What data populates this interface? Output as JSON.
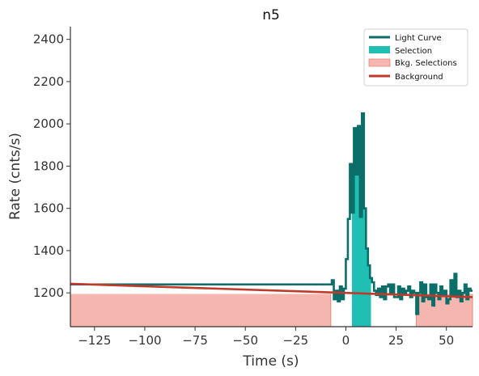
{
  "chart_data": {
    "type": "line",
    "title": "n5",
    "xlabel": "Time (s)",
    "ylabel": "Rate (cnts/s)",
    "xlim": [
      -137,
      63
    ],
    "ylim": [
      1040,
      2460
    ],
    "xticks": [
      -125,
      -100,
      -75,
      -50,
      -25,
      0,
      25,
      50
    ],
    "xtick_labels": [
      "−125",
      "−100",
      "−75",
      "−50",
      "−25",
      "0",
      "25",
      "50"
    ],
    "yticks": [
      1200,
      1400,
      1600,
      1800,
      2000,
      2200,
      2400
    ],
    "ytick_labels": [
      "1200",
      "1400",
      "1600",
      "1800",
      "2000",
      "2200",
      "2400"
    ],
    "grid": false,
    "legend_position": "top-right",
    "colors": {
      "light_curve": "#0b6e69",
      "selection": "#1fbfb3",
      "bkg_selection": "#f4b6ae",
      "bkg_selection_edge": "#e8877b",
      "background": "#c0392b",
      "axis": "#333333"
    },
    "legend": [
      {
        "label": "Light Curve",
        "kind": "line",
        "color": "#0b6e69"
      },
      {
        "label": "Selection",
        "kind": "patch",
        "color": "#1fbfb3"
      },
      {
        "label": "Bkg. Selections",
        "kind": "patch",
        "color": "#f4b6ae"
      },
      {
        "label": "Background",
        "kind": "line",
        "color": "#c0392b"
      }
    ],
    "selection_interval": [
      3,
      12.5
    ],
    "bkg_selection_intervals": [
      [
        -137,
        -7.5
      ],
      [
        35,
        63
      ]
    ],
    "background_fit": {
      "x": [
        -137,
        63
      ],
      "y": [
        1243,
        1180
      ]
    },
    "light_curve": {
      "step": 1,
      "x": [
        -137,
        -136,
        -7,
        -6,
        -5,
        -4,
        -3,
        -2,
        -1,
        0,
        1,
        2,
        3,
        4,
        5,
        6,
        7,
        8,
        9,
        10,
        11,
        12,
        13,
        14,
        15,
        16,
        17,
        18,
        19,
        20,
        21,
        22,
        23,
        24,
        25,
        26,
        27,
        28,
        29,
        30,
        31,
        32,
        33,
        34,
        35,
        36,
        37,
        38,
        39,
        40,
        41,
        42,
        43,
        44,
        45,
        46,
        47,
        48,
        49,
        50,
        51,
        52,
        53,
        54,
        55,
        56,
        57,
        58,
        59,
        60,
        61,
        62
      ],
      "y": [
        1240,
        1240,
        1260,
        1170,
        1210,
        1160,
        1230,
        1170,
        1220,
        1360,
        1550,
        1810,
        1580,
        1980,
        1760,
        1990,
        1560,
        2050,
        1600,
        1410,
        1330,
        1270,
        1250,
        1210,
        1190,
        1220,
        1180,
        1230,
        1170,
        1230,
        1240,
        1200,
        1240,
        1180,
        1180,
        1230,
        1170,
        1220,
        1200,
        1210,
        1230,
        1180,
        1210,
        1200,
        1100,
        1200,
        1250,
        1160,
        1240,
        1180,
        1170,
        1240,
        1140,
        1240,
        1200,
        1170,
        1230,
        1190,
        1210,
        1150,
        1170,
        1260,
        1190,
        1290,
        1180,
        1210,
        1160,
        1200,
        1240,
        1170,
        1220,
        1210
      ]
    }
  }
}
